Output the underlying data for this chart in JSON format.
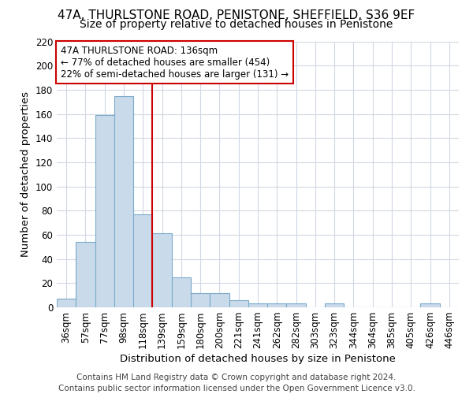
{
  "title": "47A, THURLSTONE ROAD, PENISTONE, SHEFFIELD, S36 9EF",
  "subtitle": "Size of property relative to detached houses in Penistone",
  "xlabel": "Distribution of detached houses by size in Penistone",
  "ylabel": "Number of detached properties",
  "categories": [
    "36sqm",
    "57sqm",
    "77sqm",
    "98sqm",
    "118sqm",
    "139sqm",
    "159sqm",
    "180sqm",
    "200sqm",
    "221sqm",
    "241sqm",
    "262sqm",
    "282sqm",
    "303sqm",
    "323sqm",
    "344sqm",
    "364sqm",
    "385sqm",
    "405sqm",
    "426sqm",
    "446sqm"
  ],
  "values": [
    7,
    54,
    159,
    175,
    77,
    61,
    25,
    12,
    12,
    6,
    3,
    3,
    3,
    0,
    3,
    0,
    0,
    0,
    0,
    3,
    0
  ],
  "bar_color": "#c9daea",
  "bar_edge_color": "#7aaac9",
  "vline_index": 5,
  "marker_label": "47A THURLSTONE ROAD: 136sqm",
  "annotation_line1": "← 77% of detached houses are smaller (454)",
  "annotation_line2": "22% of semi-detached houses are larger (131) →",
  "annotation_box_color": "#ffffff",
  "annotation_box_edge": "#cc0000",
  "vline_color": "#cc0000",
  "footer1": "Contains HM Land Registry data © Crown copyright and database right 2024.",
  "footer2": "Contains public sector information licensed under the Open Government Licence v3.0.",
  "ylim": [
    0,
    220
  ],
  "yticks": [
    0,
    20,
    40,
    60,
    80,
    100,
    120,
    140,
    160,
    180,
    200,
    220
  ],
  "background_color": "#ffffff",
  "plot_background": "#ffffff",
  "grid_color": "#d0d8e4",
  "title_fontsize": 11,
  "subtitle_fontsize": 10,
  "axis_label_fontsize": 9.5,
  "tick_fontsize": 8.5,
  "footer_fontsize": 7.5
}
